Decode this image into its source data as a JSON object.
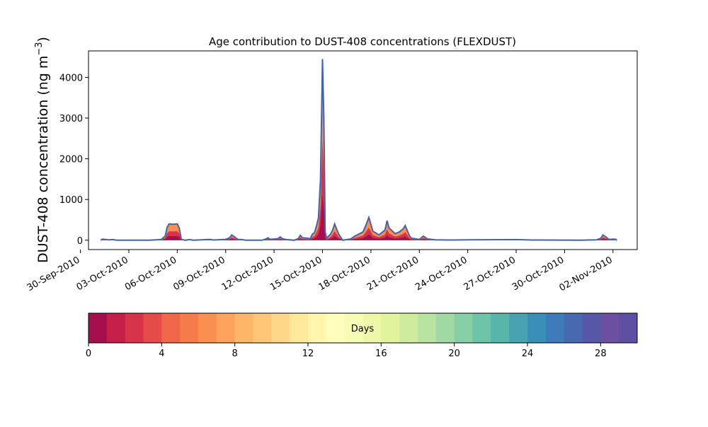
{
  "chart_data": {
    "type": "area",
    "title": "Age contribution to DUST-408 concentrations (FLEXDUST)",
    "ylabel_main": "DUST-408 concentration (ng m",
    "ylabel_sup": "−3",
    "ylabel_close": ")",
    "xlabel": "",
    "ylim": [
      -230,
      4650
    ],
    "xlim": [
      "2010-09-30T12:00",
      "2010-11-03T12:00"
    ],
    "y_ticks": [
      0,
      1000,
      2000,
      3000,
      4000
    ],
    "x_ticks": [
      "30-Sep-2010",
      "03-Oct-2010",
      "06-Oct-2010",
      "09-Oct-2010",
      "12-Oct-2010",
      "15-Oct-2010",
      "18-Oct-2010",
      "21-Oct-2010",
      "24-Oct-2010",
      "27-Oct-2010",
      "30-Oct-2010",
      "02-Nov-2010"
    ],
    "grid": false,
    "series_total": [
      [
        "2010-10-01T06:00",
        0
      ],
      [
        "2010-10-01T09:00",
        25
      ],
      [
        "2010-10-01T18:00",
        10
      ],
      [
        "2010-10-02T00:00",
        15
      ],
      [
        "2010-10-02T06:00",
        0
      ],
      [
        "2010-10-04T06:00",
        0
      ],
      [
        "2010-10-04T12:00",
        5
      ],
      [
        "2010-10-05T00:00",
        15
      ],
      [
        "2010-10-05T06:00",
        100
      ],
      [
        "2010-10-05T09:00",
        320
      ],
      [
        "2010-10-05T12:00",
        400
      ],
      [
        "2010-10-05T18:00",
        390
      ],
      [
        "2010-10-06T00:00",
        400
      ],
      [
        "2010-10-06T03:00",
        300
      ],
      [
        "2010-10-06T06:00",
        20
      ],
      [
        "2010-10-06T12:00",
        0
      ],
      [
        "2010-10-06T18:00",
        15
      ],
      [
        "2010-10-07T00:00",
        0
      ],
      [
        "2010-10-07T12:00",
        10
      ],
      [
        "2010-10-08T00:00",
        20
      ],
      [
        "2010-10-08T06:00",
        5
      ],
      [
        "2010-10-09T00:00",
        20
      ],
      [
        "2010-10-09T06:00",
        60
      ],
      [
        "2010-10-09T09:00",
        130
      ],
      [
        "2010-10-09T15:00",
        60
      ],
      [
        "2010-10-09T18:00",
        20
      ],
      [
        "2010-10-10T00:00",
        15
      ],
      [
        "2010-10-10T06:00",
        0
      ],
      [
        "2010-10-11T06:00",
        0
      ],
      [
        "2010-10-11T12:00",
        30
      ],
      [
        "2010-10-11T15:00",
        60
      ],
      [
        "2010-10-11T18:00",
        20
      ],
      [
        "2010-10-12T06:00",
        40
      ],
      [
        "2010-10-12T09:00",
        80
      ],
      [
        "2010-10-12T12:00",
        40
      ],
      [
        "2010-10-12T18:00",
        15
      ],
      [
        "2010-10-13T06:00",
        0
      ],
      [
        "2010-10-13T12:00",
        40
      ],
      [
        "2010-10-13T15:00",
        120
      ],
      [
        "2010-10-13T18:00",
        60
      ],
      [
        "2010-10-14T00:00",
        50
      ],
      [
        "2010-10-14T06:00",
        40
      ],
      [
        "2010-10-14T09:00",
        150
      ],
      [
        "2010-10-14T12:00",
        180
      ],
      [
        "2010-10-14T15:00",
        350
      ],
      [
        "2010-10-14T18:00",
        550
      ],
      [
        "2010-10-14T21:00",
        1500
      ],
      [
        "2010-10-15T00:00",
        4450
      ],
      [
        "2010-10-15T02:00",
        3000
      ],
      [
        "2010-10-15T04:00",
        200
      ],
      [
        "2010-10-15T06:00",
        50
      ],
      [
        "2010-10-15T12:00",
        150
      ],
      [
        "2010-10-15T15:00",
        250
      ],
      [
        "2010-10-15T18:00",
        400
      ],
      [
        "2010-10-16T00:00",
        150
      ],
      [
        "2010-10-16T06:00",
        0
      ],
      [
        "2010-10-16T18:00",
        30
      ],
      [
        "2010-10-17T00:00",
        100
      ],
      [
        "2010-10-17T06:00",
        150
      ],
      [
        "2010-10-17T12:00",
        200
      ],
      [
        "2010-10-17T15:00",
        300
      ],
      [
        "2010-10-17T21:00",
        560
      ],
      [
        "2010-10-18T03:00",
        220
      ],
      [
        "2010-10-18T12:00",
        130
      ],
      [
        "2010-10-18T21:00",
        250
      ],
      [
        "2010-10-19T00:00",
        480
      ],
      [
        "2010-10-19T03:00",
        300
      ],
      [
        "2010-10-19T12:00",
        160
      ],
      [
        "2010-10-19T18:00",
        200
      ],
      [
        "2010-10-20T00:00",
        280
      ],
      [
        "2010-10-20T03:00",
        360
      ],
      [
        "2010-10-20T09:00",
        120
      ],
      [
        "2010-10-20T12:00",
        50
      ],
      [
        "2010-10-21T00:00",
        20
      ],
      [
        "2010-10-21T06:00",
        100
      ],
      [
        "2010-10-21T12:00",
        30
      ],
      [
        "2010-10-22T00:00",
        10
      ],
      [
        "2010-10-23T00:00",
        5
      ],
      [
        "2010-10-24T00:00",
        10
      ],
      [
        "2010-10-27T00:00",
        15
      ],
      [
        "2010-10-28T00:00",
        5
      ],
      [
        "2010-10-31T00:00",
        0
      ],
      [
        "2010-11-01T00:00",
        10
      ],
      [
        "2010-11-01T06:00",
        50
      ],
      [
        "2010-11-01T09:00",
        130
      ],
      [
        "2010-11-01T15:00",
        60
      ],
      [
        "2010-11-01T18:00",
        20
      ],
      [
        "2010-11-02T03:00",
        25
      ],
      [
        "2010-11-02T06:00",
        0
      ]
    ],
    "colorbar": {
      "label": "Days",
      "ticks": [
        0,
        4,
        8,
        12,
        16,
        20,
        24,
        28
      ],
      "min": 0,
      "max": 30,
      "colors": [
        "#a50f4d",
        "#c41e49",
        "#d7344b",
        "#e44c4a",
        "#ef6648",
        "#f67b4a",
        "#fa8f52",
        "#fca35d",
        "#fdb668",
        "#fec778",
        "#fed888",
        "#fee89a",
        "#fff6ac",
        "#fefdbb",
        "#f7fcb5",
        "#edf7a7",
        "#e0f39d",
        "#cfec9c",
        "#b9e3a0",
        "#a0d9a3",
        "#86cfa6",
        "#6dc4a8",
        "#58b5aa",
        "#47a2b2",
        "#3a8fb9",
        "#3d7bb9",
        "#4868b0",
        "#5658a7",
        "#6b4fa0",
        "#5e4fa2"
      ]
    },
    "colors": {
      "total_line": "#4363b0",
      "peak_fill_dark": "#c2185b",
      "peak_fill_light": "#f46d43"
    }
  }
}
